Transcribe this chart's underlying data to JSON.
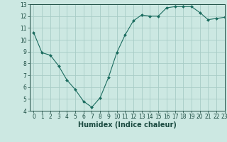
{
  "x": [
    0,
    1,
    2,
    3,
    4,
    5,
    6,
    7,
    8,
    9,
    10,
    11,
    12,
    13,
    14,
    15,
    16,
    17,
    18,
    19,
    20,
    21,
    22,
    23
  ],
  "y": [
    10.6,
    8.9,
    8.7,
    7.8,
    6.6,
    5.8,
    4.8,
    4.3,
    5.1,
    6.8,
    8.9,
    10.4,
    11.6,
    12.1,
    12.0,
    12.0,
    12.7,
    12.8,
    12.8,
    12.8,
    12.3,
    11.7,
    11.8,
    11.9
  ],
  "line_color": "#1a6b5e",
  "marker_color": "#1a6b5e",
  "bg_color": "#cce8e2",
  "grid_color": "#a8ccc6",
  "xlabel": "Humidex (Indice chaleur)",
  "ylim": [
    4,
    13
  ],
  "xlim": [
    -0.5,
    23
  ],
  "yticks": [
    4,
    5,
    6,
    7,
    8,
    9,
    10,
    11,
    12,
    13
  ],
  "xticks": [
    0,
    1,
    2,
    3,
    4,
    5,
    6,
    7,
    8,
    9,
    10,
    11,
    12,
    13,
    14,
    15,
    16,
    17,
    18,
    19,
    20,
    21,
    22,
    23
  ],
  "tick_label_fontsize": 5.5,
  "xlabel_fontsize": 7.0,
  "label_color": "#1a4a40"
}
